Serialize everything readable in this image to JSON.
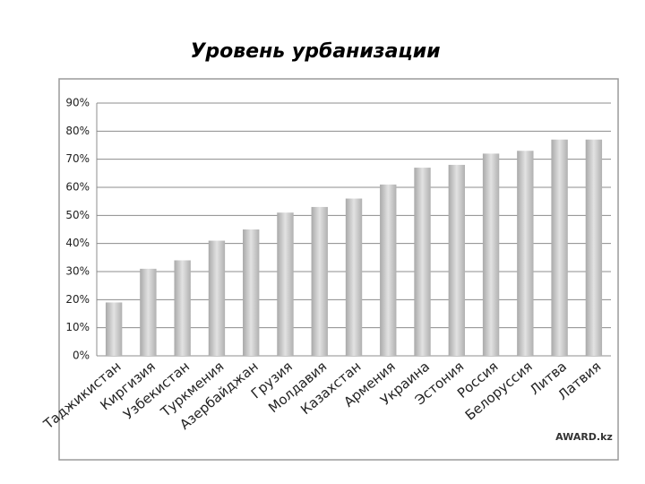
{
  "chart_data": {
    "type": "bar",
    "title": "Уровень урбанизации",
    "categories": [
      "Таджикистан",
      "Киргизия",
      "Узбекистан",
      "Туркмения",
      "Азербайджан",
      "Грузия",
      "Молдавия",
      "Казахстан",
      "Армения",
      "Украина",
      "Эстония",
      "Россия",
      "Белоруссия",
      "Литва",
      "Латвия"
    ],
    "values": [
      19,
      31,
      34,
      41,
      45,
      51,
      53,
      56,
      61,
      67,
      68,
      72,
      73,
      77,
      77
    ],
    "color": "#c8c8c8",
    "ylim": [
      0,
      90
    ],
    "yticks": [
      {
        "value": 0,
        "label": "0%"
      },
      {
        "value": 10,
        "label": "10%"
      },
      {
        "value": 20,
        "label": "20%"
      },
      {
        "value": 30,
        "label": "30%"
      },
      {
        "value": 40,
        "label": "40%"
      },
      {
        "value": 50,
        "label": "50%"
      },
      {
        "value": 60,
        "label": "60%"
      },
      {
        "value": 70,
        "label": "70%"
      },
      {
        "value": 80,
        "label": "80%"
      },
      {
        "value": 90,
        "label": "90%"
      }
    ],
    "grid": true
  },
  "watermark": "AWARD.kz"
}
